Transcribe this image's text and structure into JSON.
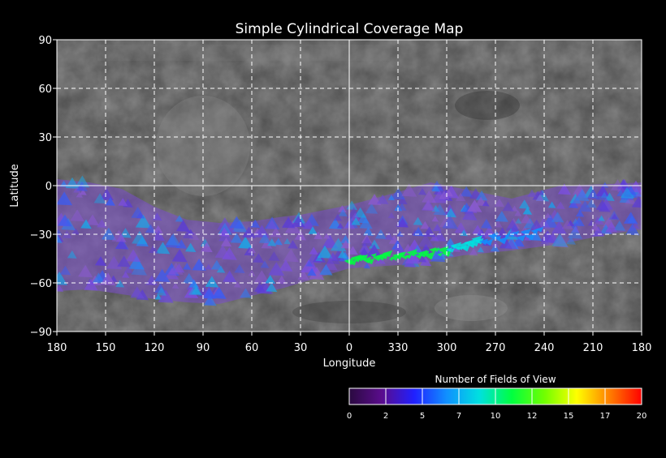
{
  "chart_data": {
    "type": "heatmap",
    "title": "Simple Cylindrical Coverage Map",
    "xlabel": "Longitude",
    "ylabel": "Latitude",
    "x_ticks": [
      "180",
      "150",
      "120",
      "90",
      "60",
      "30",
      "0",
      "330",
      "300",
      "270",
      "240",
      "210",
      "180"
    ],
    "y_ticks": [
      90,
      60,
      30,
      0,
      -30,
      -60,
      -90
    ],
    "y_tick_labels": [
      "90",
      "60",
      "30",
      "0",
      "−30",
      "−60",
      "−90"
    ],
    "xlim": [
      180,
      -180
    ],
    "ylim": [
      -90,
      90
    ],
    "grid": true,
    "coverage_band": [
      {
        "lon": 180,
        "lat_top": 4,
        "lat_bottom": -65
      },
      {
        "lon": 160,
        "lat_top": 2,
        "lat_bottom": -64
      },
      {
        "lon": 140,
        "lat_top": -2,
        "lat_bottom": -67
      },
      {
        "lon": 120,
        "lat_top": -13,
        "lat_bottom": -70
      },
      {
        "lon": 100,
        "lat_top": -21,
        "lat_bottom": -72
      },
      {
        "lon": 80,
        "lat_top": -23,
        "lat_bottom": -73
      },
      {
        "lon": 60,
        "lat_top": -22,
        "lat_bottom": -68
      },
      {
        "lon": 40,
        "lat_top": -19,
        "lat_bottom": -63
      },
      {
        "lon": 30,
        "lat_top": -18,
        "lat_bottom": -60
      },
      {
        "lon": 0,
        "lat_top": -12,
        "lat_bottom": -51
      },
      {
        "lon": -30,
        "lat_top": -4,
        "lat_bottom": -49
      },
      {
        "lon": -50,
        "lat_top": 2,
        "lat_bottom": -47
      },
      {
        "lon": -70,
        "lat_top": -2,
        "lat_bottom": -43
      },
      {
        "lon": -100,
        "lat_top": -8,
        "lat_bottom": -40
      },
      {
        "lon": -130,
        "lat_top": 0,
        "lat_bottom": -36
      },
      {
        "lon": -160,
        "lat_top": 1,
        "lat_bottom": -30
      },
      {
        "lon": -180,
        "lat_top": 2,
        "lat_bottom": -27
      }
    ],
    "high_coverage_streak": [
      {
        "lon": 0,
        "lat": -46,
        "value": 11
      },
      {
        "lon": -30,
        "lat": -43,
        "value": 11
      },
      {
        "lon": -60,
        "lat": -40,
        "value": 10
      },
      {
        "lon": -80,
        "lat": -34,
        "value": 8
      },
      {
        "lon": -120,
        "lat": -28,
        "value": 7
      }
    ],
    "colorbar": {
      "label": "Number of Fields of View",
      "min": 0,
      "max": 20,
      "ticks": [
        "0",
        "2",
        "5",
        "7",
        "10",
        "12",
        "15",
        "17",
        "20"
      ],
      "colors": [
        "#2a0a40",
        "#5a0c8c",
        "#2020ff",
        "#1090ff",
        "#00e0e0",
        "#00ff40",
        "#70ff00",
        "#ffff00",
        "#ff8000",
        "#ff0000"
      ]
    }
  }
}
